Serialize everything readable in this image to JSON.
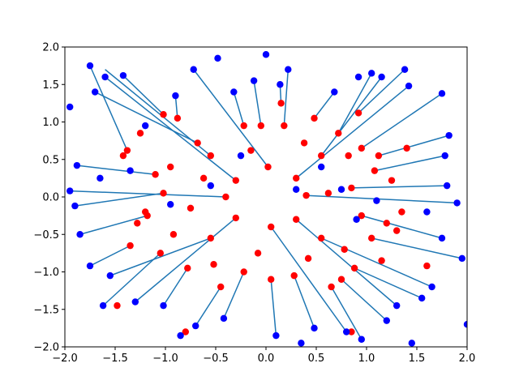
{
  "chart_data": {
    "type": "scatter",
    "title": "",
    "xlabel": "",
    "ylabel": "",
    "xlim": [
      -2.0,
      2.0
    ],
    "ylim": [
      -2.0,
      2.0
    ],
    "xticks": [
      "−2.0",
      "−1.5",
      "−1.0",
      "−0.5",
      "0.0",
      "0.5",
      "1.0",
      "1.5",
      "2.0"
    ],
    "yticks": [
      "−2.0",
      "−1.5",
      "−1.0",
      "−0.5",
      "0.0",
      "0.5",
      "1.0",
      "1.5",
      "2.0"
    ],
    "grid": false,
    "legend": "none",
    "colors": {
      "red_points": "#ff0000",
      "blue_points": "#0000ff",
      "lines": "#1f77b4"
    },
    "series": [
      {
        "role": "segments",
        "segments": [
          {
            "x1": -1.38,
            "y1": 0.62,
            "x2": -1.75,
            "y2": 1.75
          },
          {
            "x1": -1.02,
            "y1": 1.1,
            "x2": -1.42,
            "y2": 1.62
          },
          {
            "x1": -0.68,
            "y1": 0.72,
            "x2": -1.7,
            "y2": 1.4
          },
          {
            "x1": -0.88,
            "y1": 1.05,
            "x2": -0.9,
            "y2": 1.35
          },
          {
            "x1": -0.22,
            "y1": 0.95,
            "x2": -0.32,
            "y2": 1.4
          },
          {
            "x1": -0.05,
            "y1": 0.95,
            "x2": -0.12,
            "y2": 1.55
          },
          {
            "x1": 0.15,
            "y1": 1.25,
            "x2": 0.14,
            "y2": 1.5
          },
          {
            "x1": 0.18,
            "y1": 0.95,
            "x2": 0.22,
            "y2": 1.7
          },
          {
            "x1": 0.48,
            "y1": 1.05,
            "x2": 0.68,
            "y2": 1.4
          },
          {
            "x1": 0.72,
            "y1": 0.85,
            "x2": 1.05,
            "y2": 1.65
          },
          {
            "x1": 0.92,
            "y1": 1.12,
            "x2": 1.38,
            "y2": 1.7
          },
          {
            "x1": 0.95,
            "y1": 0.65,
            "x2": 1.75,
            "y2": 1.38
          },
          {
            "x1": 1.12,
            "y1": 0.55,
            "x2": 1.82,
            "y2": 0.82
          },
          {
            "x1": 1.08,
            "y1": 0.35,
            "x2": 1.78,
            "y2": 0.55
          },
          {
            "x1": 0.85,
            "y1": 0.12,
            "x2": 1.8,
            "y2": 0.15
          },
          {
            "x1": 0.95,
            "y1": -0.25,
            "x2": 1.75,
            "y2": -0.55
          },
          {
            "x1": 1.05,
            "y1": -0.55,
            "x2": 1.95,
            "y2": -0.82
          },
          {
            "x1": 0.88,
            "y1": -0.95,
            "x2": 1.55,
            "y2": -1.35
          },
          {
            "x1": 0.75,
            "y1": -1.1,
            "x2": 1.2,
            "y2": -1.65
          },
          {
            "x1": 0.65,
            "y1": -1.2,
            "x2": 0.95,
            "y2": -1.9
          },
          {
            "x1": 0.28,
            "y1": -1.05,
            "x2": 0.48,
            "y2": -1.75
          },
          {
            "x1": 0.05,
            "y1": -1.1,
            "x2": 0.1,
            "y2": -1.85
          },
          {
            "x1": -0.22,
            "y1": -1.0,
            "x2": -0.42,
            "y2": -1.62
          },
          {
            "x1": -0.45,
            "y1": -1.2,
            "x2": -0.7,
            "y2": -1.72
          },
          {
            "x1": -0.78,
            "y1": -0.95,
            "x2": -1.02,
            "y2": -1.45
          },
          {
            "x1": -1.05,
            "y1": -0.75,
            "x2": -1.62,
            "y2": -1.45
          },
          {
            "x1": -1.35,
            "y1": -0.65,
            "x2": -1.75,
            "y2": -0.92
          },
          {
            "x1": -1.18,
            "y1": -0.25,
            "x2": -1.85,
            "y2": -0.5
          },
          {
            "x1": -1.02,
            "y1": 0.05,
            "x2": -1.9,
            "y2": -0.12
          },
          {
            "x1": -1.1,
            "y1": 0.3,
            "x2": -1.88,
            "y2": 0.42
          },
          {
            "x1": -0.3,
            "y1": 0.22,
            "x2": -1.6,
            "y2": 1.6
          },
          {
            "x1": 0.3,
            "y1": 0.25,
            "x2": 1.42,
            "y2": 1.48
          },
          {
            "x1": 0.3,
            "y1": -0.3,
            "x2": 1.3,
            "y2": -1.45
          },
          {
            "x1": -0.3,
            "y1": -0.28,
            "x2": -1.3,
            "y2": -1.4
          },
          {
            "x1": 0.02,
            "y1": 0.4,
            "x2": -0.72,
            "y2": 1.7
          },
          {
            "x1": 0.05,
            "y1": -0.4,
            "x2": 0.8,
            "y2": -1.8
          },
          {
            "x1": 0.4,
            "y1": 0.02,
            "x2": 1.9,
            "y2": -0.08
          },
          {
            "x1": -0.4,
            "y1": 0.0,
            "x2": -1.95,
            "y2": 0.08
          },
          {
            "x1": -0.55,
            "y1": 0.55,
            "x2": -1.6,
            "y2": 1.7
          },
          {
            "x1": 0.55,
            "y1": 0.55,
            "x2": 1.15,
            "y2": 1.6
          },
          {
            "x1": 0.55,
            "y1": -0.55,
            "x2": 1.65,
            "y2": -1.2
          },
          {
            "x1": -0.55,
            "y1": -0.55,
            "x2": -1.55,
            "y2": -1.05
          }
        ]
      },
      {
        "role": "red-points",
        "color": "#ff0000",
        "x": [
          -1.38,
          -1.02,
          -0.68,
          -0.88,
          -0.22,
          -0.05,
          0.15,
          0.18,
          0.48,
          0.72,
          0.92,
          0.95,
          1.12,
          1.08,
          0.85,
          0.95,
          1.05,
          0.88,
          0.75,
          0.65,
          0.28,
          0.05,
          -0.22,
          -0.45,
          -0.78,
          -1.05,
          -1.35,
          -1.18,
          -1.02,
          -1.1,
          -0.3,
          0.3,
          0.3,
          -0.3,
          0.02,
          0.05,
          0.4,
          -0.4,
          -0.55,
          0.55,
          0.55,
          -0.55,
          -1.25,
          -0.95,
          -0.62,
          -0.15,
          0.38,
          0.82,
          1.25,
          1.35,
          1.3,
          1.15,
          0.78,
          0.42,
          -0.08,
          -0.52,
          -0.92,
          -1.28,
          -1.42,
          -0.75,
          0.62,
          1.4,
          -1.48,
          1.6,
          -0.8,
          0.85,
          -1.2,
          1.2
        ],
        "y": [
          0.62,
          1.1,
          0.72,
          1.05,
          0.95,
          0.95,
          1.25,
          0.95,
          1.05,
          0.85,
          1.12,
          0.65,
          0.55,
          0.35,
          0.12,
          -0.25,
          -0.55,
          -0.95,
          -1.1,
          -1.2,
          -1.05,
          -1.1,
          -1.0,
          -1.2,
          -0.95,
          -0.75,
          -0.65,
          -0.25,
          0.05,
          0.3,
          0.22,
          0.25,
          -0.3,
          -0.28,
          0.4,
          -0.4,
          0.02,
          0.0,
          0.55,
          0.55,
          -0.55,
          -0.55,
          0.85,
          0.4,
          0.25,
          0.62,
          0.72,
          0.55,
          0.22,
          -0.2,
          -0.45,
          -0.85,
          -0.7,
          -0.82,
          -0.75,
          -0.9,
          -0.5,
          -0.35,
          0.55,
          -0.15,
          0.05,
          0.65,
          -1.45,
          -0.92,
          -1.8,
          -1.8,
          -0.2,
          -0.35
        ]
      },
      {
        "role": "blue-points",
        "color": "#0000ff",
        "x": [
          -1.75,
          -1.42,
          -1.7,
          -0.9,
          -0.32,
          -0.12,
          0.14,
          0.22,
          0.68,
          1.05,
          1.38,
          1.75,
          1.82,
          1.78,
          1.8,
          1.75,
          1.95,
          1.55,
          1.2,
          0.95,
          0.48,
          0.1,
          -0.42,
          -0.7,
          -1.02,
          -1.62,
          -1.75,
          -1.85,
          -1.9,
          -1.88,
          -1.6,
          1.42,
          1.3,
          -1.3,
          -0.72,
          0.8,
          1.9,
          -1.95,
          1.15,
          1.65,
          -1.55,
          -0.48,
          0.0,
          0.92,
          -0.85,
          0.35,
          1.45,
          -1.95,
          2.0,
          -1.2,
          0.55,
          -0.25,
          1.6,
          -0.95,
          0.75,
          -1.65,
          0.3,
          1.1,
          -0.55,
          -1.35,
          0.9
        ],
        "y": [
          1.75,
          1.62,
          1.4,
          1.35,
          1.4,
          1.55,
          1.5,
          1.7,
          1.4,
          1.65,
          1.7,
          1.38,
          0.82,
          0.55,
          0.15,
          -0.55,
          -0.82,
          -1.35,
          -1.65,
          -1.9,
          -1.75,
          -1.85,
          -1.62,
          -1.72,
          -1.45,
          -1.45,
          -0.92,
          -0.5,
          -0.12,
          0.42,
          1.6,
          1.48,
          -1.45,
          -1.4,
          1.7,
          -1.8,
          -0.08,
          0.08,
          1.6,
          -1.2,
          -1.05,
          1.85,
          1.9,
          1.6,
          -1.85,
          -1.95,
          -1.95,
          1.2,
          -1.7,
          0.95,
          0.4,
          0.55,
          -0.2,
          -0.1,
          0.1,
          0.25,
          0.1,
          -0.05,
          0.15,
          0.35,
          -0.3
        ]
      }
    ]
  }
}
